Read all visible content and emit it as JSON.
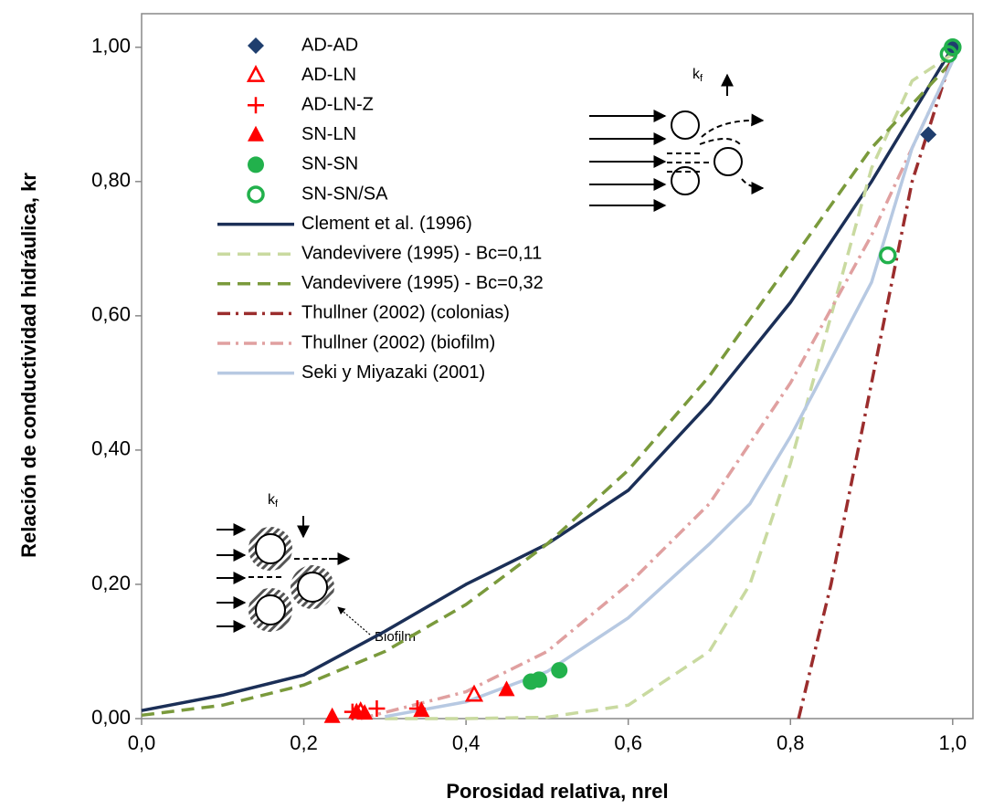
{
  "chart_data": {
    "type": "scatter",
    "x_label": "Porosidad relativa, nrel",
    "y_label": "Relación de conductividad hidráulica, kr",
    "xlim": [
      0,
      1.025
    ],
    "ylim": [
      0,
      1.05
    ],
    "xticks": [
      {
        "value": 0,
        "label": "0,0"
      },
      {
        "value": 0.2,
        "label": "0,2"
      },
      {
        "value": 0.4,
        "label": "0,4"
      },
      {
        "value": 0.6,
        "label": "0,6"
      },
      {
        "value": 0.8,
        "label": "0,8"
      },
      {
        "value": 1.0,
        "label": "1,0"
      }
    ],
    "yticks": [
      {
        "value": 0,
        "label": "0,00"
      },
      {
        "value": 0.2,
        "label": "0,20"
      },
      {
        "value": 0.4,
        "label": "0,40"
      },
      {
        "value": 0.6,
        "label": "0,60"
      },
      {
        "value": 0.8,
        "label": "0,80"
      },
      {
        "value": 1.0,
        "label": "1,00"
      }
    ],
    "legend": "upper left",
    "series": [
      {
        "name": "AD-AD",
        "kind": "diamond",
        "color": "#1f3e6e",
        "x": [
          0.97,
          1.0
        ],
        "values": [
          0.87,
          1.0
        ]
      },
      {
        "name": "AD-LN",
        "kind": "triangle-open",
        "color": "#ff0000",
        "x": [
          0.27,
          0.41
        ],
        "values": [
          0.01,
          0.035
        ]
      },
      {
        "name": "AD-LN-Z",
        "kind": "plus",
        "color": "#ff0000",
        "x": [
          0.26,
          0.29,
          0.34
        ],
        "values": [
          0.01,
          0.015,
          0.015
        ]
      },
      {
        "name": "SN-LN",
        "kind": "triangle",
        "color": "#ff0000",
        "x": [
          0.235,
          0.265,
          0.275,
          0.345,
          0.45
        ],
        "values": [
          0.003,
          0.01,
          0.008,
          0.012,
          0.043
        ]
      },
      {
        "name": "SN-SN",
        "kind": "circle",
        "color": "#22b14c",
        "x": [
          0.48,
          0.49,
          0.515
        ],
        "values": [
          0.055,
          0.058,
          0.072
        ]
      },
      {
        "name": "SN-SN/SA",
        "kind": "circle-open",
        "color": "#22b14c",
        "x": [
          0.92,
          0.995,
          1.0
        ],
        "values": [
          0.69,
          0.99,
          1.0
        ]
      },
      {
        "name": "Clement et al. (1996)",
        "kind": "line",
        "dash": "solid",
        "color": "#1b2f57",
        "x": [
          0,
          0.1,
          0.2,
          0.3,
          0.4,
          0.5,
          0.6,
          0.7,
          0.8,
          0.9,
          1.0
        ],
        "values": [
          0.012,
          0.035,
          0.065,
          0.13,
          0.2,
          0.26,
          0.34,
          0.47,
          0.62,
          0.8,
          1.0
        ]
      },
      {
        "name": "Vandevivere (1995) - Bc=0,11",
        "kind": "line",
        "dash": "dash",
        "color": "#c9daa0",
        "x": [
          0.3,
          0.4,
          0.5,
          0.6,
          0.7,
          0.75,
          0.8,
          0.85,
          0.9,
          0.95,
          1.0
        ],
        "values": [
          0,
          0,
          0.002,
          0.02,
          0.1,
          0.2,
          0.38,
          0.6,
          0.82,
          0.95,
          0.99
        ]
      },
      {
        "name": "Vandevivere (1995) - Bc=0,32",
        "kind": "line",
        "dash": "dash",
        "color": "#7a9a3c",
        "x": [
          0,
          0.1,
          0.2,
          0.3,
          0.4,
          0.5,
          0.6,
          0.7,
          0.8,
          0.9,
          1.0
        ],
        "values": [
          0.005,
          0.02,
          0.05,
          0.1,
          0.17,
          0.26,
          0.37,
          0.51,
          0.68,
          0.85,
          0.98
        ]
      },
      {
        "name": "Thullner (2002) (colonias)",
        "kind": "line",
        "dash": "dashdot",
        "color": "#9b2d2d",
        "x": [
          0.81,
          0.85,
          0.9,
          0.95,
          1.0
        ],
        "values": [
          0,
          0.2,
          0.5,
          0.8,
          0.99
        ]
      },
      {
        "name": "Thullner (2002) (biofilm)",
        "kind": "line",
        "dash": "dashdot",
        "color": "#e0a0a0",
        "x": [
          0.27,
          0.4,
          0.5,
          0.6,
          0.7,
          0.8,
          0.9,
          1.0
        ],
        "values": [
          0,
          0.04,
          0.1,
          0.2,
          0.32,
          0.5,
          0.72,
          0.98
        ]
      },
      {
        "name": "Seki y Miyazaki (2001)",
        "kind": "line",
        "dash": "solid",
        "color": "#b7c9e2",
        "x": [
          0.3,
          0.4,
          0.5,
          0.6,
          0.7,
          0.75,
          0.8,
          0.9,
          0.95,
          1.0
        ],
        "values": [
          0.003,
          0.025,
          0.07,
          0.15,
          0.26,
          0.32,
          0.42,
          0.65,
          0.85,
          0.98
        ]
      }
    ],
    "annotations": [
      {
        "base": "k",
        "sub": "f"
      },
      {
        "base": "k",
        "sub": "f"
      },
      {
        "text": "Biofilm"
      }
    ]
  }
}
